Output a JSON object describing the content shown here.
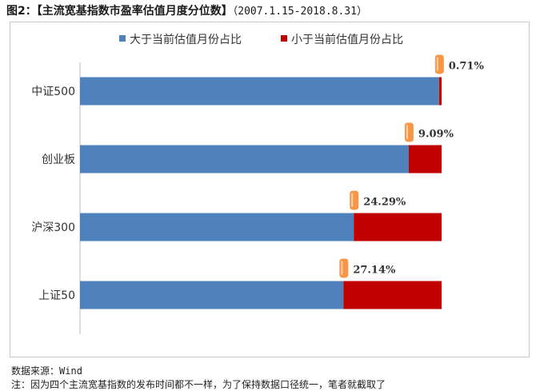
{
  "figure": {
    "title": "图2：【主流宽基指数市盈率估值月度分位数】",
    "date_range": "（2007.1.15-2018.8.31）",
    "source_label": "数据来源：",
    "source_value": "Wind",
    "note": "注：因为四个主流宽基指数的发布时间都不一样，为了保持数据口径统一，笔者就截取了"
  },
  "colors": {
    "above": "#4f81bd",
    "below": "#c00000",
    "marker": "#f79646",
    "highlight_label": "#c00000"
  },
  "chart_data": {
    "type": "bar",
    "orientation": "horizontal",
    "stacked": true,
    "categories": [
      "中证500",
      "创业板",
      "沪深300",
      "上证50"
    ],
    "series": [
      {
        "name": "大于当前估值月份占比",
        "values": [
          99.29,
          90.91,
          75.71,
          72.86
        ]
      },
      {
        "name": "小于当前估值月份占比",
        "values": [
          0.71,
          9.09,
          24.29,
          27.14
        ]
      }
    ],
    "data_labels": [
      "0.71%",
      "9.09%",
      "24.29%",
      "27.14%"
    ],
    "xlim": [
      0,
      100
    ],
    "legend_position": "top",
    "grid": false,
    "annotation_marker": "orange-tag-icon"
  }
}
